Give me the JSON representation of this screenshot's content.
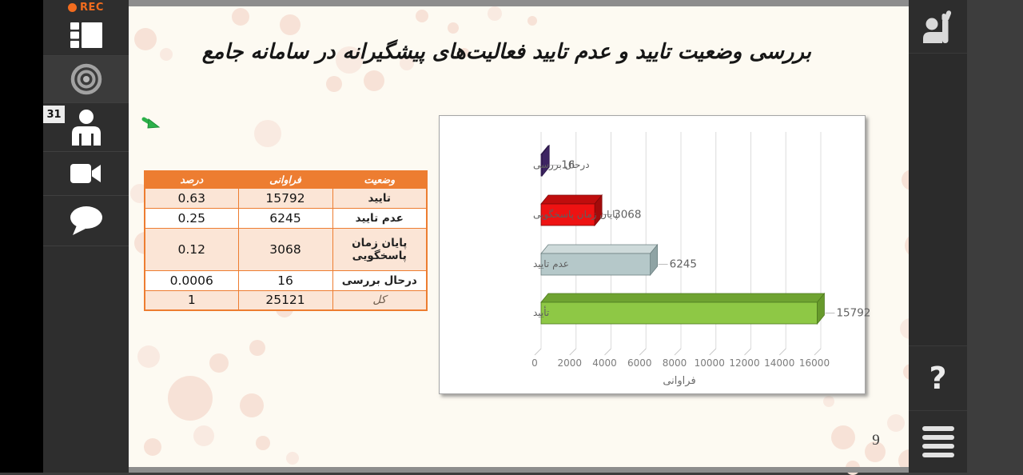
{
  "colors": {
    "accent_orange": "#ED7D31",
    "rec_orange": "#F26C1E"
  },
  "left_toolbar": {
    "rec_label": "REC",
    "attendees_badge": "31",
    "items": [
      "layouts",
      "record",
      "attendees",
      "camera",
      "chat"
    ]
  },
  "right_toolbar": {
    "help_glyph": "?",
    "items": [
      "raise-hand",
      "help",
      "menu"
    ]
  },
  "slide": {
    "title": "بررسی وضعیت تایید و عدم تایید فعالیت‌های پیشگیرانه در سامانه جامع",
    "page_number": "9",
    "table": {
      "headers": {
        "status": "وضعیت",
        "frequency": "فراوانی",
        "percent": "درصد"
      },
      "rows": [
        {
          "status": "تایید",
          "frequency": "15792",
          "percent": "0.63"
        },
        {
          "status": "عدم تایید",
          "frequency": "6245",
          "percent": "0.25"
        },
        {
          "status": "پایان زمان پاسخگویی",
          "frequency": "3068",
          "percent": "0.12"
        },
        {
          "status": "درحال بررسی",
          "frequency": "16",
          "percent": "0.0006"
        },
        {
          "status": "کل",
          "frequency": "25121",
          "percent": "1"
        }
      ]
    }
  },
  "chart_data": {
    "type": "bar",
    "orientation": "horizontal",
    "style": "3d",
    "title": "",
    "xlabel": "فراوانی",
    "ylabel": "",
    "categories": [
      "درحال بررسی",
      "پایان زمان پاسخگویی",
      "عدم تایید",
      "تأیید"
    ],
    "values": [
      16,
      3068,
      6245,
      15792
    ],
    "data_labels": [
      "16",
      "3068",
      "6245",
      "15792"
    ],
    "xticks": [
      0,
      2000,
      4000,
      6000,
      8000,
      10000,
      12000,
      14000,
      16000
    ],
    "xlim": [
      0,
      16000
    ],
    "grid": true,
    "legend": false,
    "bar_colors": [
      {
        "front": "#53317E",
        "top": "#3D2462",
        "side": "#3D2462",
        "stroke": "#2B1847"
      },
      {
        "front": "#EE1212",
        "top": "#C00D0D",
        "side": "#A30B0B",
        "stroke": "#7E0808"
      },
      {
        "front": "#B5C8C9",
        "top": "#CEDADA",
        "side": "#8FA3A4",
        "stroke": "#6C8081"
      },
      {
        "front": "#8EC845",
        "top": "#6FA331",
        "side": "#679A2C",
        "stroke": "#4E7A1F"
      }
    ]
  }
}
